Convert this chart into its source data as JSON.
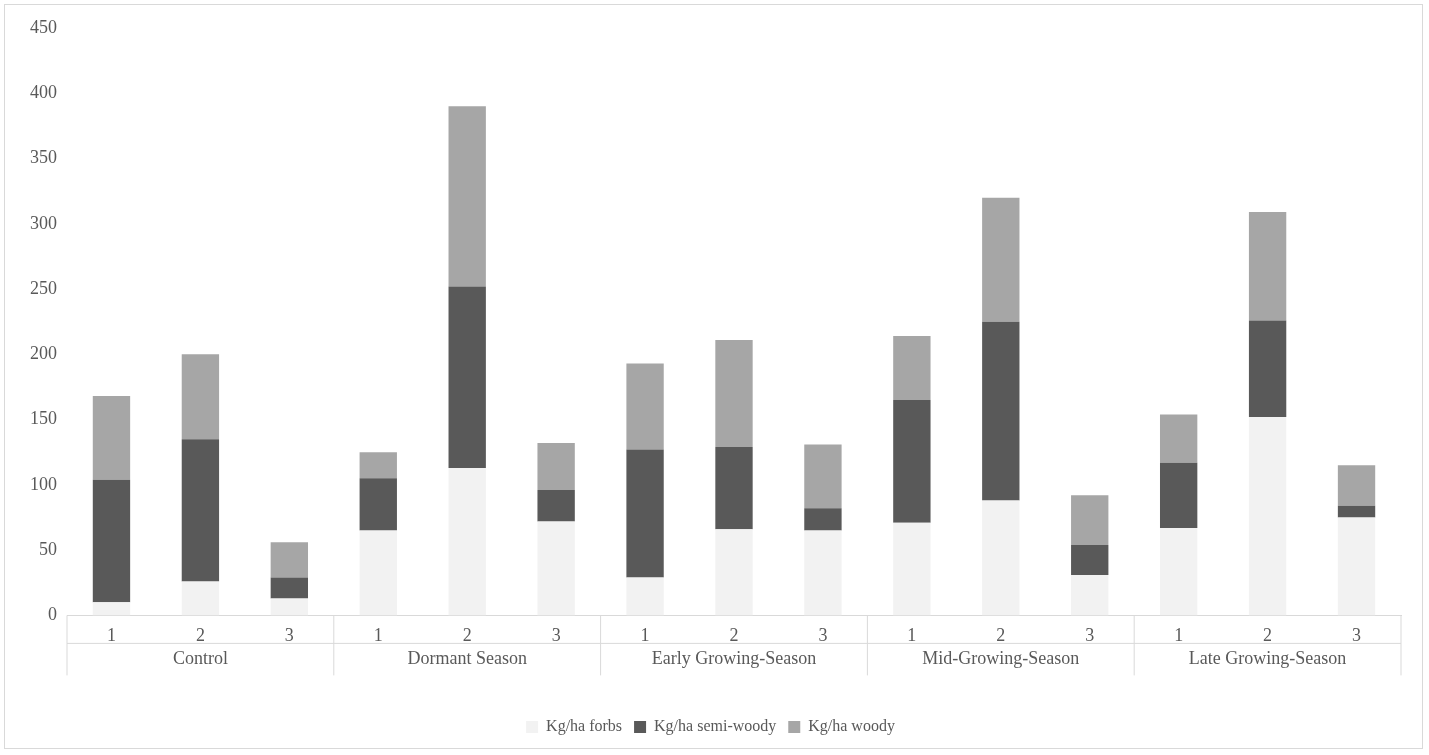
{
  "chart_data": {
    "type": "bar",
    "stacked": true,
    "categories": [
      "1",
      "2",
      "3",
      "1",
      "2",
      "3",
      "1",
      "2",
      "3",
      "1",
      "2",
      "3",
      "1",
      "2",
      "3"
    ],
    "annotations": [
      "Control",
      "Dormant Season",
      "Early Growing-Season",
      "Mid-Growing-Season",
      "Late Growing-Season"
    ],
    "series": [
      {
        "name": "Kg/ha forbs",
        "color": "#f2f2f2",
        "values": [
          10,
          26,
          13,
          65,
          113,
          72,
          29,
          66,
          65,
          71,
          88,
          31,
          67,
          152,
          75
        ]
      },
      {
        "name": "Kg/ha semi-woody",
        "color": "#595959",
        "values": [
          94,
          109,
          16,
          40,
          139,
          24,
          98,
          63,
          17,
          94,
          137,
          23,
          50,
          74,
          9
        ]
      },
      {
        "name": "Kg/ha woody",
        "color": "#a6a6a6",
        "values": [
          64,
          65,
          27,
          20,
          138,
          36,
          66,
          82,
          49,
          49,
          95,
          38,
          37,
          83,
          31
        ]
      }
    ],
    "ylim": [
      0,
      450
    ],
    "yticks": [
      0,
      50,
      100,
      150,
      200,
      250,
      300,
      350,
      400,
      450
    ],
    "grid": false,
    "legend": "bottom"
  }
}
